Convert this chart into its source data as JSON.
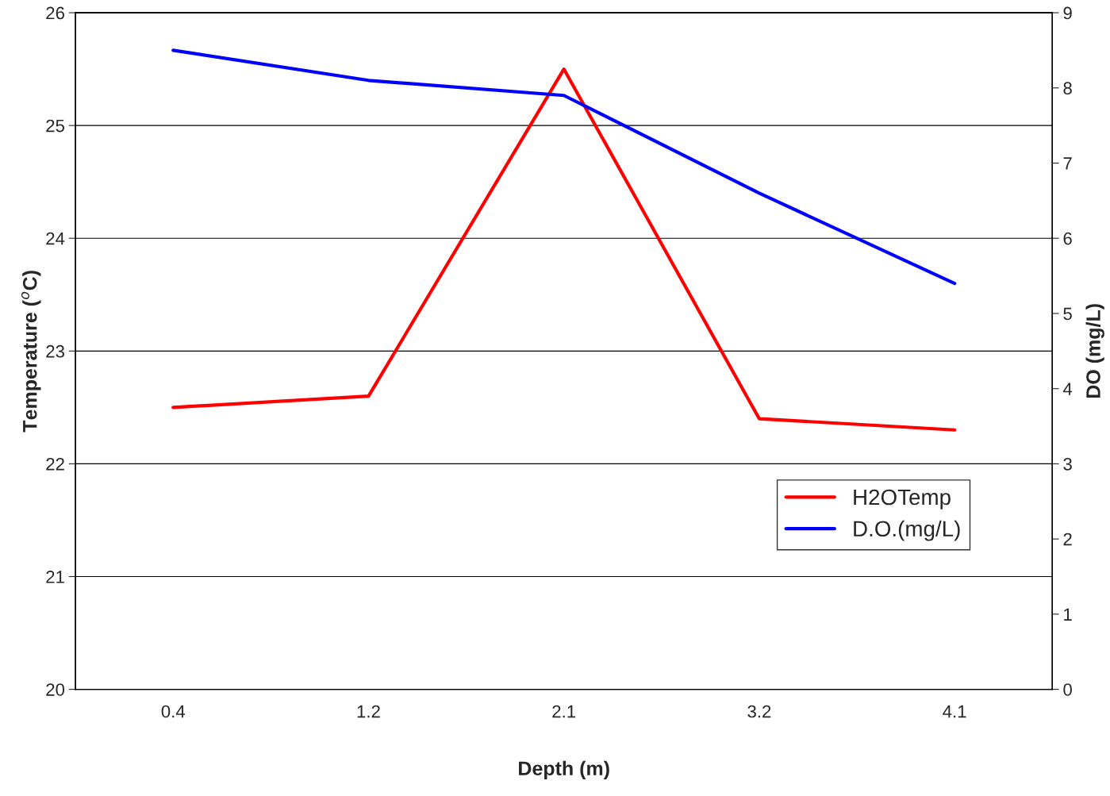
{
  "chart_data": {
    "type": "line",
    "xlabel": "Depth (m)",
    "ylabel": "Temperature ($^{o}$C)",
    "y2label": "DO (mg/L)",
    "categories": [
      "0.4",
      "1.2",
      "2.1",
      "3.2",
      "4.1"
    ],
    "series": [
      {
        "name": "H2OTemp",
        "color": "#ff0000",
        "values": [
          22.5,
          22.6,
          25.5,
          22.4,
          22.3
        ]
      },
      {
        "name": "D.O.(mg/L)",
        "color": "#0000ff",
        "axis": "y2",
        "values": [
          8.5,
          8.1,
          7.9,
          6.6,
          5.4
        ]
      }
    ],
    "ylim": [
      20,
      26
    ],
    "yticks": [
      20,
      21,
      22,
      23,
      24,
      25,
      26
    ],
    "y2lim": [
      0,
      9
    ],
    "y2ticks": [
      0,
      1,
      2,
      3,
      4,
      5,
      6,
      7,
      8,
      9
    ],
    "grid": "y",
    "legend": "bottom right",
    "marker": "none",
    "line_style": "solid"
  }
}
